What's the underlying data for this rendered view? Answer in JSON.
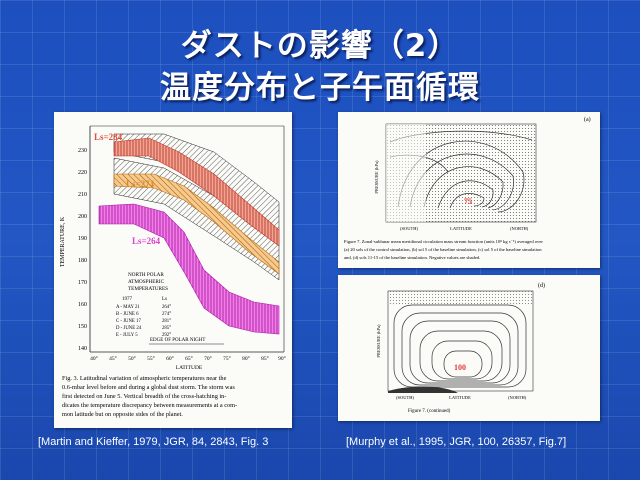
{
  "slide": {
    "title_line1": "ダストの影響（2）",
    "title_line2": "温度分布と子午面循環"
  },
  "left_figure": {
    "y_axis_label": "TEMPERATURE, K",
    "y_ticks": [
      "230",
      "220",
      "210",
      "200",
      "190",
      "180",
      "170",
      "160",
      "150",
      "140"
    ],
    "x_axis_label": "LATITUDE",
    "x_ticks": [
      "40°",
      "45°",
      "50°",
      "55°",
      "60°",
      "65°",
      "70°",
      "75°",
      "80°",
      "85°",
      "90°"
    ],
    "band_labels": [
      "Ls=284",
      "Ls=274",
      "Ls=264"
    ],
    "band_colors": [
      "#e0503a",
      "#d9892a",
      "#e040d0"
    ],
    "legend_title": [
      "NORTH POLAR",
      "ATMOSPHERIC",
      "TEMPERATURES"
    ],
    "legend_year": "1977",
    "legend_ls_header": "Ls",
    "legend_rows": [
      {
        "label": "A - MAY 21",
        "ls": "264°"
      },
      {
        "label": "B - JUNE 6",
        "ls": "274°"
      },
      {
        "label": "C - JUNE 17",
        "ls": "281°"
      },
      {
        "label": "D - JUNE 24",
        "ls": "285°"
      },
      {
        "label": "E - JULY 5",
        "ls": "292°"
      }
    ],
    "polar_night_label": "EDGE OF POLAR NIGHT",
    "caption": [
      "Fig. 3.   Latitudinal variation of atmospheric temperatures near the",
      "0.6-mbar level before and during a global dust storm. The storm was",
      "first detected on June 5. Vertical breadth of the cross-hatching in-",
      "dicates the temperature discrepancy between measurements at a com-",
      "mon latitude but on opposite sides of the planet."
    ]
  },
  "right_top_figure": {
    "panel_label": "(a)",
    "peak_value": "75",
    "y_axis_label": "PRESSURE (hPa)",
    "x_axis_label": "LATITUDE",
    "x_south": "(SOUTH)",
    "x_north": "(NORTH)",
    "caption": [
      "Figure 7.   Zonal-sublunar mean meridional circulation mass stream function (units 10⁸ kg s⁻¹) averaged over",
      "(a) 20 sols of the control simulation, (b) sol 5 of the baseline simulation, (c) sol 5 of the baseline simulation",
      "and, (d) sols 11-15 of the baseline simulation.  Negative values are shaded."
    ]
  },
  "right_bottom_figure": {
    "panel_label": "(d)",
    "peak_value": "100",
    "y_axis_label": "PRESSURE (hPa)",
    "x_axis_label": "LATITUDE",
    "x_south": "(SOUTH)",
    "x_north": "(NORTH)",
    "caption": "Figure 7.  (continued)"
  },
  "citations": {
    "left": "[Martin and Kieffer, 1979, JGR, 84, 2843, Fig. 3",
    "right": "[Murphy et al., 1995, JGR, 100, 26357, Fig.7]"
  }
}
